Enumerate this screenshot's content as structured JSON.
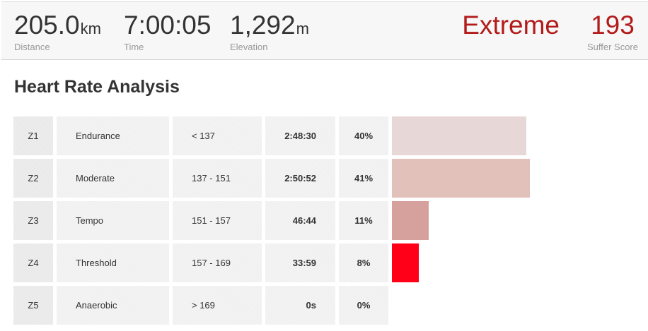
{
  "stats": {
    "distance": {
      "value": "205.0",
      "unit": "km",
      "label": "Distance"
    },
    "time": {
      "value": "7:00:05",
      "unit": "",
      "label": "Time"
    },
    "elevation": {
      "value": "1,292",
      "unit": "m",
      "label": "Elevation"
    },
    "intensity": {
      "value": "Extreme",
      "label": ""
    },
    "suffer_score": {
      "value": "193",
      "label": "Suffer Score"
    }
  },
  "section_title": "Heart Rate Analysis",
  "zones": [
    {
      "zone": "Z1",
      "name": "Endurance",
      "range": "< 137",
      "time": "2:48:30",
      "percent": "40%",
      "bar_fraction": 0.4,
      "color": "#e8d7d7"
    },
    {
      "zone": "Z2",
      "name": "Moderate",
      "range": "137 - 151",
      "time": "2:50:52",
      "percent": "41%",
      "bar_fraction": 0.41,
      "color": "#e3c1bb"
    },
    {
      "zone": "Z3",
      "name": "Tempo",
      "range": "151 - 157",
      "time": "46:44",
      "percent": "11%",
      "bar_fraction": 0.11,
      "color": "#d6a19c"
    },
    {
      "zone": "Z4",
      "name": "Threshold",
      "range": "157 - 169",
      "time": "33:59",
      "percent": "8%",
      "bar_fraction": 0.08,
      "color": "#ff0018"
    },
    {
      "zone": "Z5",
      "name": "Anaerobic",
      "range": "> 169",
      "time": "0s",
      "percent": "0%",
      "bar_fraction": 0.0,
      "color": "#ff0018"
    }
  ]
}
